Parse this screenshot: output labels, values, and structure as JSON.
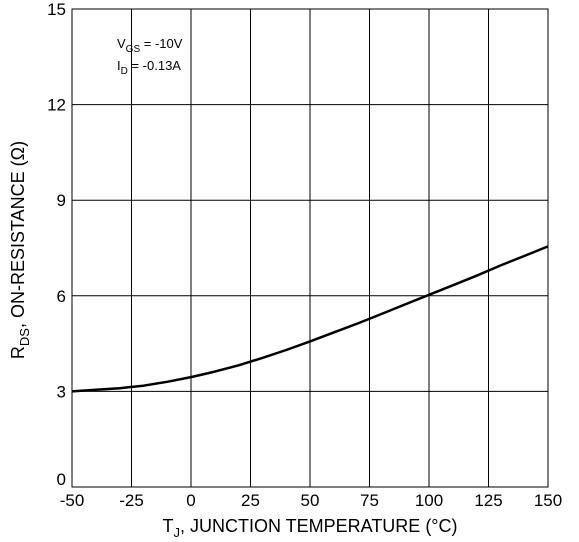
{
  "chart_data": {
    "type": "line",
    "title": "",
    "xlabel": {
      "main": "T",
      "sub": "J",
      "rest": ", JUNCTION TEMPERATURE (°C)"
    },
    "ylabel": {
      "main": "R",
      "sub": "DS",
      "rest": ", ON-RESISTANCE (Ω)"
    },
    "xlim": [
      -50,
      150
    ],
    "ylim": [
      0,
      15
    ],
    "xticks": [
      -50,
      -25,
      0,
      25,
      50,
      75,
      100,
      125,
      150
    ],
    "yticks": [
      0,
      3,
      6,
      9,
      12,
      15
    ],
    "grid": true,
    "legend": "none",
    "annotations": [
      {
        "main": "V",
        "sub": "GS",
        "rest": " = -10V"
      },
      {
        "main": "I",
        "sub": "D",
        "rest": " = -0.13A"
      }
    ],
    "series": [
      {
        "color": "#000000",
        "x": [
          -50,
          -40,
          -30,
          -20,
          -10,
          0,
          10,
          20,
          30,
          40,
          50,
          60,
          70,
          80,
          90,
          100,
          110,
          120,
          130,
          140,
          150
        ],
        "y": [
          3.0,
          3.05,
          3.1,
          3.18,
          3.3,
          3.45,
          3.62,
          3.82,
          4.05,
          4.3,
          4.57,
          4.85,
          5.13,
          5.43,
          5.73,
          6.03,
          6.33,
          6.63,
          6.95,
          7.25,
          7.55
        ]
      }
    ]
  }
}
